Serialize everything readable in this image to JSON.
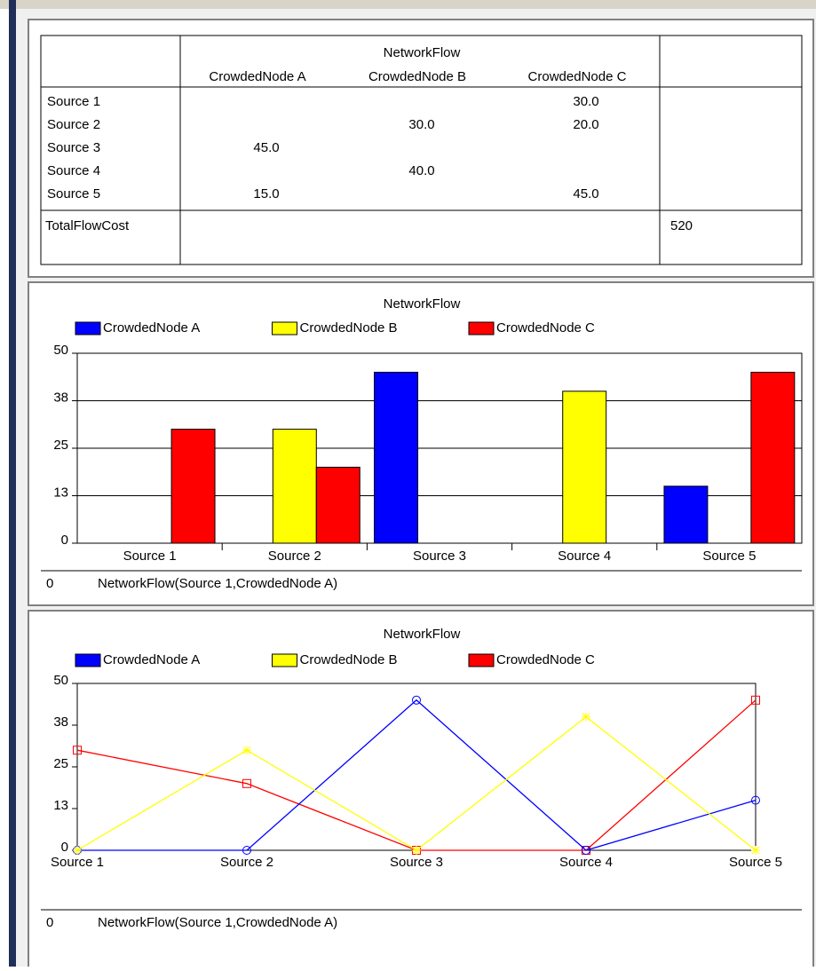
{
  "table": {
    "title": "NetworkFlow",
    "columns": [
      "CrowdedNode A",
      "CrowdedNode B",
      "CrowdedNode C"
    ],
    "rows": [
      [
        "Source 1",
        null,
        null,
        "30.0"
      ],
      [
        "Source 2",
        null,
        "30.0",
        "20.0"
      ],
      [
        "Source 3",
        "45.0",
        null,
        null
      ],
      [
        "Source 4",
        null,
        "40.0",
        null
      ],
      [
        "Source 5",
        "15.0",
        null,
        "45.0"
      ]
    ],
    "total": {
      "label": "TotalFlowCost",
      "value": "520"
    }
  },
  "chart_data": [
    {
      "type": "bar",
      "title": "NetworkFlow",
      "categories": [
        "Source 1",
        "Source 2",
        "Source 3",
        "Source 4",
        "Source 5"
      ],
      "series": [
        {
          "name": "CrowdedNode A",
          "color": "#0000ff",
          "values": [
            0,
            0,
            45,
            0,
            15
          ]
        },
        {
          "name": "CrowdedNode B",
          "color": "#ffff00",
          "values": [
            0,
            30,
            0,
            40,
            0
          ]
        },
        {
          "name": "CrowdedNode C",
          "color": "#ff0000",
          "values": [
            30,
            20,
            0,
            0,
            45
          ]
        }
      ],
      "ylim": [
        0,
        50
      ],
      "yticks": [
        0,
        {
          "value": 12.5,
          "label": "13"
        },
        25,
        {
          "value": 37.5,
          "label": "38"
        },
        50
      ],
      "grid": true,
      "footer": [
        "0",
        "NetworkFlow(Source 1,CrowdedNode A)"
      ]
    },
    {
      "type": "line",
      "title": "NetworkFlow",
      "categories": [
        "Source 1",
        "Source 2",
        "Source 3",
        "Source 4",
        "Source 5"
      ],
      "series": [
        {
          "name": "CrowdedNode A",
          "color": "#0000ff",
          "values": [
            0,
            0,
            45,
            0,
            15
          ]
        },
        {
          "name": "CrowdedNode B",
          "color": "#ffff00",
          "values": [
            0,
            30,
            0,
            40,
            0
          ]
        },
        {
          "name": "CrowdedNode C",
          "color": "#ff0000",
          "values": [
            30,
            20,
            0,
            0,
            45
          ]
        }
      ],
      "ylim": [
        0,
        50
      ],
      "yticks": [
        0,
        {
          "value": 12.5,
          "label": "13"
        },
        25,
        {
          "value": 37.5,
          "label": "38"
        },
        50
      ],
      "grid": false,
      "footer": [
        "0",
        "NetworkFlow(Source 1,CrowdedNode A)"
      ]
    }
  ]
}
